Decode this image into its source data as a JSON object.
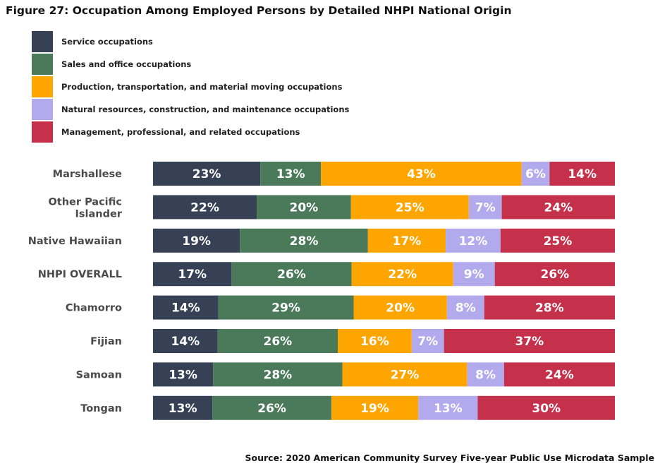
{
  "chart_data": {
    "type": "bar",
    "orientation": "horizontal",
    "stacked": true,
    "title": "Figure 27: Occupation Among Employed Persons by Detailed NHPI National Origin",
    "source": "Source: 2020 American Community Survey Five-year Public Use Microdata Sample",
    "categories": [
      "Marshallese",
      "Other Pacific Islander",
      "Native Hawaiian",
      "NHPI OVERALL",
      "Chamorro",
      "Fijian",
      "Samoan",
      "Tongan"
    ],
    "series": [
      {
        "name": "Service occupations",
        "color": "#364156",
        "values": [
          23,
          22,
          19,
          17,
          14,
          14,
          13,
          13
        ]
      },
      {
        "name": "Sales and office occupations",
        "color": "#4a7a5a",
        "values": [
          13,
          20,
          28,
          26,
          29,
          26,
          28,
          26
        ]
      },
      {
        "name": "Production, transportation, and material moving occupations",
        "color": "#ffa500",
        "values": [
          43,
          25,
          17,
          22,
          20,
          16,
          27,
          19
        ]
      },
      {
        "name": "Natural resources, construction, and maintenance occupations",
        "color": "#b3aaee",
        "values": [
          6,
          7,
          12,
          9,
          8,
          7,
          8,
          13
        ]
      },
      {
        "name": "Management, professional, and related occupations",
        "color": "#c5304a",
        "values": [
          14,
          24,
          25,
          26,
          28,
          37,
          24,
          30
        ]
      }
    ],
    "value_suffix": "%",
    "legend_position": "top-left",
    "grid": false
  }
}
